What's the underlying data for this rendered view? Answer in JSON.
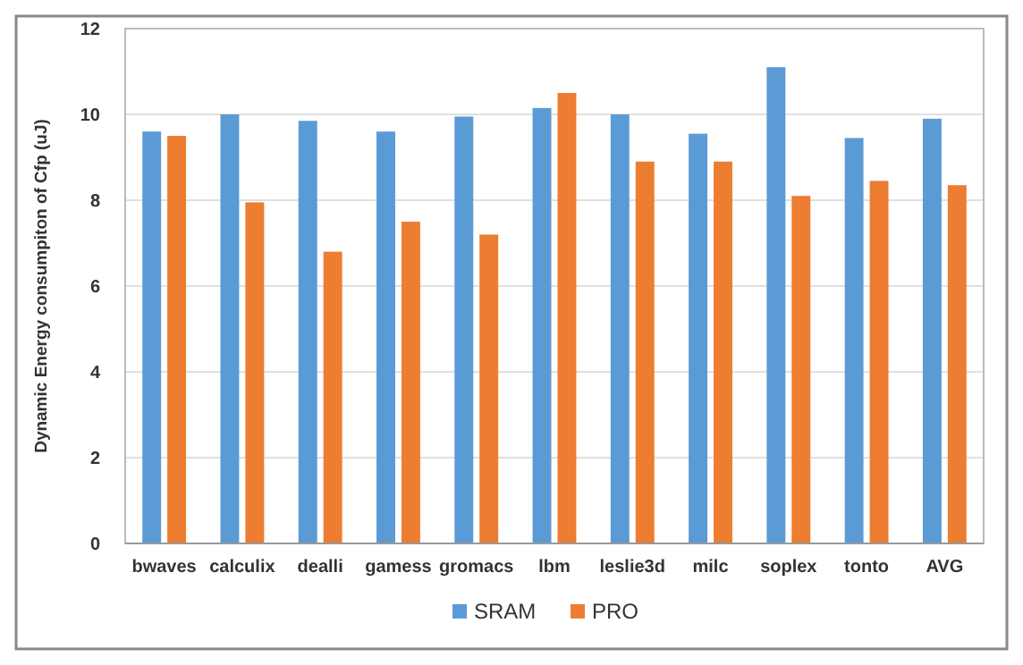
{
  "chart_data": {
    "type": "bar",
    "ylabel": "Dynamic Energy consumpiton of Cfp (uJ)",
    "categories": [
      "bwaves",
      "calculix",
      "dealli",
      "gamess",
      "gromacs",
      "lbm",
      "leslie3d",
      "milc",
      "soplex",
      "tonto",
      "AVG"
    ],
    "series": [
      {
        "name": "SRAM",
        "color": "#5b9bd5",
        "values": [
          9.6,
          10.0,
          9.85,
          9.6,
          9.95,
          10.15,
          10.0,
          9.55,
          11.1,
          9.45,
          9.9
        ]
      },
      {
        "name": "PRO",
        "color": "#ed7d31",
        "values": [
          9.5,
          7.95,
          6.8,
          7.5,
          7.2,
          10.5,
          8.9,
          8.9,
          8.1,
          8.45,
          8.35
        ]
      }
    ],
    "ylim": [
      0,
      12
    ],
    "yticks": [
      0,
      2,
      4,
      6,
      8,
      10,
      12
    ],
    "grid": "y",
    "legend": "bottom"
  }
}
